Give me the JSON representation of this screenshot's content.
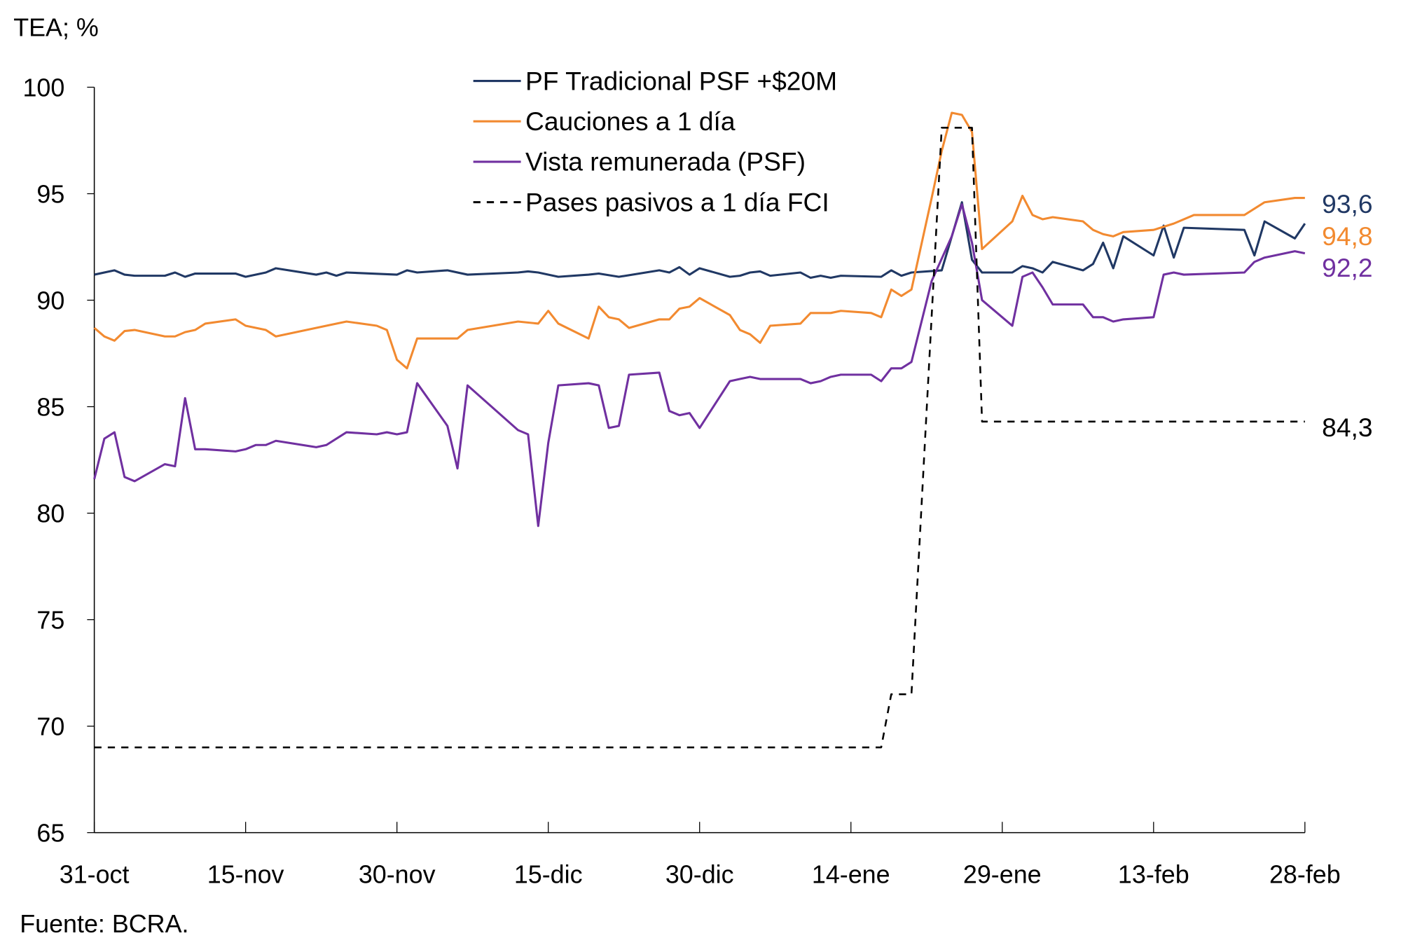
{
  "chart_data": {
    "type": "line",
    "ylabel": "TEA; %",
    "source": "Fuente: BCRA.",
    "ylim": [
      65,
      100
    ],
    "yticks": [
      "65",
      "70",
      "75",
      "80",
      "85",
      "90",
      "95",
      "100"
    ],
    "xlim": [
      "31-oct",
      "28-feb"
    ],
    "xticks": [
      "31-oct",
      "15-nov",
      "30-nov",
      "15-dic",
      "30-dic",
      "14-ene",
      "29-ene",
      "13-feb",
      "28-feb"
    ],
    "grid": false,
    "legend": "top-center",
    "series": [
      {
        "name": "PF Tradicional PSF +$20M",
        "color": "#203864",
        "dash": false,
        "end_label": "93,6",
        "points": [
          [
            "31-oct",
            91.2
          ],
          [
            "2-nov",
            91.4
          ],
          [
            "3-nov",
            91.2
          ],
          [
            "4-nov",
            91.15
          ],
          [
            "7-nov",
            91.15
          ],
          [
            "8-nov",
            91.3
          ],
          [
            "9-nov",
            91.1
          ],
          [
            "10-nov",
            91.25
          ],
          [
            "14-nov",
            91.25
          ],
          [
            "15-nov",
            91.1
          ],
          [
            "17-nov",
            91.3
          ],
          [
            "18-nov",
            91.5
          ],
          [
            "22-nov",
            91.2
          ],
          [
            "23-nov",
            91.3
          ],
          [
            "24-nov",
            91.15
          ],
          [
            "25-nov",
            91.3
          ],
          [
            "30-nov",
            91.2
          ],
          [
            "1-dic",
            91.4
          ],
          [
            "2-dic",
            91.3
          ],
          [
            "5-dic",
            91.4
          ],
          [
            "7-dic",
            91.2
          ],
          [
            "12-dic",
            91.3
          ],
          [
            "13-dic",
            91.35
          ],
          [
            "14-dic",
            91.3
          ],
          [
            "16-dic",
            91.1
          ],
          [
            "19-dic",
            91.2
          ],
          [
            "20-dic",
            91.25
          ],
          [
            "22-dic",
            91.1
          ],
          [
            "26-dic",
            91.4
          ],
          [
            "27-dic",
            91.3
          ],
          [
            "28-dic",
            91.55
          ],
          [
            "29-dic",
            91.2
          ],
          [
            "30-dic",
            91.5
          ],
          [
            "2-ene",
            91.1
          ],
          [
            "3-ene",
            91.15
          ],
          [
            "4-ene",
            91.3
          ],
          [
            "5-ene",
            91.35
          ],
          [
            "6-ene",
            91.15
          ],
          [
            "9-ene",
            91.3
          ],
          [
            "10-ene",
            91.05
          ],
          [
            "11-ene",
            91.15
          ],
          [
            "12-ene",
            91.05
          ],
          [
            "13-ene",
            91.15
          ],
          [
            "17-ene",
            91.1
          ],
          [
            "18-ene",
            91.4
          ],
          [
            "19-ene",
            91.15
          ],
          [
            "20-ene",
            91.3
          ],
          [
            "23-ene",
            91.4
          ],
          [
            "25-ene",
            94.6
          ],
          [
            "26-ene",
            91.9
          ],
          [
            "27-ene",
            91.3
          ],
          [
            "30-ene",
            91.3
          ],
          [
            "31-ene",
            91.6
          ],
          [
            "1-feb",
            91.5
          ],
          [
            "2-feb",
            91.3
          ],
          [
            "3-feb",
            91.8
          ],
          [
            "6-feb",
            91.4
          ],
          [
            "7-feb",
            91.7
          ],
          [
            "8-feb",
            92.7
          ],
          [
            "9-feb",
            91.5
          ],
          [
            "10-feb",
            93.0
          ],
          [
            "13-feb",
            92.1
          ],
          [
            "14-feb",
            93.5
          ],
          [
            "15-feb",
            92.0
          ],
          [
            "16-feb",
            93.4
          ],
          [
            "22-feb",
            93.3
          ],
          [
            "23-feb",
            92.1
          ],
          [
            "24-feb",
            93.7
          ],
          [
            "27-feb",
            92.9
          ],
          [
            "28-feb",
            93.6
          ]
        ]
      },
      {
        "name": "Cauciones a 1 día",
        "color": "#F28A30",
        "dash": false,
        "end_label": "94,8",
        "points": [
          [
            "31-oct",
            88.7
          ],
          [
            "1-nov",
            88.3
          ],
          [
            "2-nov",
            88.1
          ],
          [
            "3-nov",
            88.55
          ],
          [
            "4-nov",
            88.6
          ],
          [
            "7-nov",
            88.3
          ],
          [
            "8-nov",
            88.3
          ],
          [
            "9-nov",
            88.5
          ],
          [
            "10-nov",
            88.6
          ],
          [
            "11-nov",
            88.9
          ],
          [
            "14-nov",
            89.1
          ],
          [
            "15-nov",
            88.8
          ],
          [
            "17-nov",
            88.6
          ],
          [
            "18-nov",
            88.3
          ],
          [
            "23-nov",
            88.8
          ],
          [
            "25-nov",
            89.0
          ],
          [
            "28-nov",
            88.8
          ],
          [
            "29-nov",
            88.6
          ],
          [
            "30-nov",
            87.2
          ],
          [
            "1-dic",
            86.8
          ],
          [
            "2-dic",
            88.2
          ],
          [
            "6-dic",
            88.2
          ],
          [
            "7-dic",
            88.6
          ],
          [
            "12-dic",
            89.0
          ],
          [
            "14-dic",
            88.9
          ],
          [
            "15-dic",
            89.5
          ],
          [
            "16-dic",
            88.9
          ],
          [
            "19-dic",
            88.2
          ],
          [
            "20-dic",
            89.7
          ],
          [
            "21-dic",
            89.2
          ],
          [
            "22-dic",
            89.1
          ],
          [
            "23-dic",
            88.7
          ],
          [
            "26-dic",
            89.1
          ],
          [
            "27-dic",
            89.1
          ],
          [
            "28-dic",
            89.6
          ],
          [
            "29-dic",
            89.7
          ],
          [
            "30-dic",
            90.1
          ],
          [
            "2-ene",
            89.3
          ],
          [
            "3-ene",
            88.6
          ],
          [
            "4-ene",
            88.4
          ],
          [
            "5-ene",
            88.0
          ],
          [
            "6-ene",
            88.8
          ],
          [
            "9-ene",
            88.9
          ],
          [
            "10-ene",
            89.4
          ],
          [
            "12-ene",
            89.4
          ],
          [
            "13-ene",
            89.5
          ],
          [
            "16-ene",
            89.4
          ],
          [
            "17-ene",
            89.2
          ],
          [
            "18-ene",
            90.5
          ],
          [
            "19-ene",
            90.2
          ],
          [
            "20-ene",
            90.5
          ],
          [
            "22-ene",
            94.8
          ],
          [
            "23-ene",
            97.0
          ],
          [
            "24-ene",
            98.8
          ],
          [
            "25-ene",
            98.7
          ],
          [
            "26-ene",
            97.9
          ],
          [
            "27-ene",
            92.4
          ],
          [
            "30-ene",
            93.7
          ],
          [
            "31-ene",
            94.9
          ],
          [
            "1-feb",
            94.0
          ],
          [
            "2-feb",
            93.8
          ],
          [
            "3-feb",
            93.9
          ],
          [
            "6-feb",
            93.7
          ],
          [
            "7-feb",
            93.3
          ],
          [
            "8-feb",
            93.1
          ],
          [
            "9-feb",
            93.0
          ],
          [
            "10-feb",
            93.2
          ],
          [
            "13-feb",
            93.3
          ],
          [
            "15-feb",
            93.6
          ],
          [
            "17-feb",
            94.0
          ],
          [
            "22-feb",
            94.0
          ],
          [
            "24-feb",
            94.6
          ],
          [
            "27-feb",
            94.8
          ],
          [
            "28-feb",
            94.8
          ]
        ]
      },
      {
        "name": "Vista remunerada (PSF)",
        "color": "#7030A0",
        "dash": false,
        "end_label": "92,2",
        "points": [
          [
            "31-oct",
            81.6
          ],
          [
            "1-nov",
            83.5
          ],
          [
            "2-nov",
            83.8
          ],
          [
            "3-nov",
            81.7
          ],
          [
            "4-nov",
            81.5
          ],
          [
            "7-nov",
            82.3
          ],
          [
            "8-nov",
            82.2
          ],
          [
            "9-nov",
            85.4
          ],
          [
            "10-nov",
            83.0
          ],
          [
            "11-nov",
            83.0
          ],
          [
            "14-nov",
            82.9
          ],
          [
            "15-nov",
            83.0
          ],
          [
            "16-nov",
            83.2
          ],
          [
            "17-nov",
            83.2
          ],
          [
            "18-nov",
            83.4
          ],
          [
            "22-nov",
            83.1
          ],
          [
            "23-nov",
            83.2
          ],
          [
            "25-nov",
            83.8
          ],
          [
            "28-nov",
            83.7
          ],
          [
            "29-nov",
            83.8
          ],
          [
            "30-nov",
            83.7
          ],
          [
            "1-dic",
            83.8
          ],
          [
            "2-dic",
            86.1
          ],
          [
            "5-dic",
            84.1
          ],
          [
            "6-dic",
            82.1
          ],
          [
            "7-dic",
            86.0
          ],
          [
            "12-dic",
            83.9
          ],
          [
            "13-dic",
            83.7
          ],
          [
            "14-dic",
            79.4
          ],
          [
            "15-dic",
            83.3
          ],
          [
            "16-dic",
            86.0
          ],
          [
            "19-dic",
            86.1
          ],
          [
            "20-dic",
            86.0
          ],
          [
            "21-dic",
            84.0
          ],
          [
            "22-dic",
            84.1
          ],
          [
            "23-dic",
            86.5
          ],
          [
            "26-dic",
            86.6
          ],
          [
            "27-dic",
            84.8
          ],
          [
            "28-dic",
            84.6
          ],
          [
            "29-dic",
            84.7
          ],
          [
            "30-dic",
            84.0
          ],
          [
            "2-ene",
            86.2
          ],
          [
            "3-ene",
            86.3
          ],
          [
            "4-ene",
            86.4
          ],
          [
            "5-ene",
            86.3
          ],
          [
            "9-ene",
            86.3
          ],
          [
            "10-ene",
            86.1
          ],
          [
            "11-ene",
            86.2
          ],
          [
            "12-ene",
            86.4
          ],
          [
            "13-ene",
            86.5
          ],
          [
            "16-ene",
            86.5
          ],
          [
            "17-ene",
            86.2
          ],
          [
            "18-ene",
            86.8
          ],
          [
            "19-ene",
            86.8
          ],
          [
            "20-ene",
            87.1
          ],
          [
            "22-ene",
            90.9
          ],
          [
            "24-ene",
            93.0
          ],
          [
            "25-ene",
            94.5
          ],
          [
            "26-ene",
            92.7
          ],
          [
            "27-ene",
            90.0
          ],
          [
            "30-ene",
            88.8
          ],
          [
            "31-ene",
            91.1
          ],
          [
            "1-feb",
            91.3
          ],
          [
            "2-feb",
            90.6
          ],
          [
            "3-feb",
            89.8
          ],
          [
            "6-feb",
            89.8
          ],
          [
            "7-feb",
            89.2
          ],
          [
            "8-feb",
            89.2
          ],
          [
            "9-feb",
            89.0
          ],
          [
            "10-feb",
            89.1
          ],
          [
            "13-feb",
            89.2
          ],
          [
            "14-feb",
            91.2
          ],
          [
            "15-feb",
            91.3
          ],
          [
            "16-feb",
            91.2
          ],
          [
            "22-feb",
            91.3
          ],
          [
            "23-feb",
            91.8
          ],
          [
            "24-feb",
            92.0
          ],
          [
            "27-feb",
            92.3
          ],
          [
            "28-feb",
            92.2
          ]
        ]
      },
      {
        "name": "Pases pasivos a 1 día FCI",
        "color": "#000000",
        "dash": true,
        "end_label": "84,3",
        "points": [
          [
            "31-oct",
            69.0
          ],
          [
            "17-ene",
            69.0
          ],
          [
            "18-ene",
            71.5
          ],
          [
            "20-ene",
            71.5
          ],
          [
            "23-ene",
            98.1
          ],
          [
            "26-ene",
            98.1
          ],
          [
            "27-ene",
            84.3
          ],
          [
            "28-feb",
            84.3
          ]
        ]
      }
    ]
  }
}
